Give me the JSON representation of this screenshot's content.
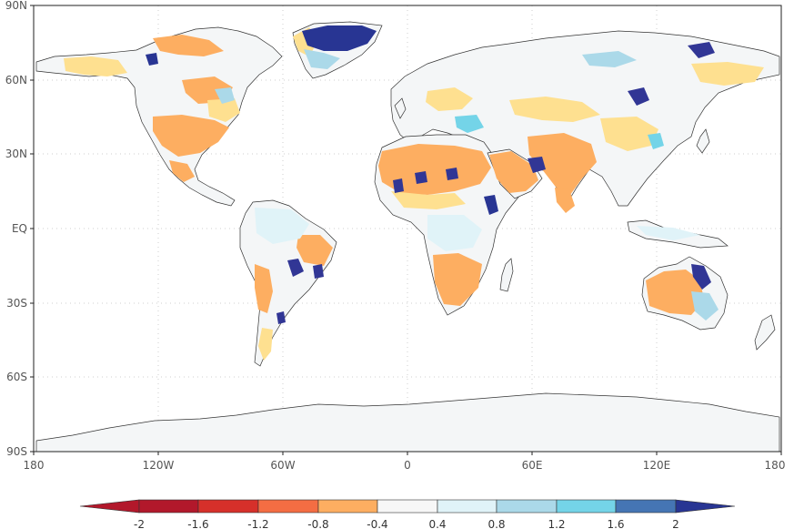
{
  "map": {
    "lat_ticks": [
      "90N",
      "60N",
      "30N",
      "EQ",
      "30S",
      "60S",
      "90S"
    ],
    "lon_ticks": [
      "180",
      "120W",
      "60W",
      "0",
      "60E",
      "120E",
      "180"
    ],
    "lon_range": [
      -180,
      180
    ],
    "lat_range": [
      -90,
      90
    ],
    "gridlines": "dotted",
    "projection": "equirectangular"
  },
  "colorbar": {
    "levels": [
      "-2",
      "-1.6",
      "-1.2",
      "-0.8",
      "-0.4",
      "0.4",
      "0.8",
      "1.2",
      "1.6",
      "2"
    ],
    "colors": [
      "#b2182b",
      "#d6302a",
      "#f46d43",
      "#fdae61",
      "#fee090",
      "#f7f7f7",
      "#e0f3f8",
      "#abd9e9",
      "#74d4e8",
      "#4575b4",
      "#313695"
    ],
    "min_arrow_color": "#b2182b",
    "max_arrow_color": "#283593",
    "placement": "bottom"
  }
}
